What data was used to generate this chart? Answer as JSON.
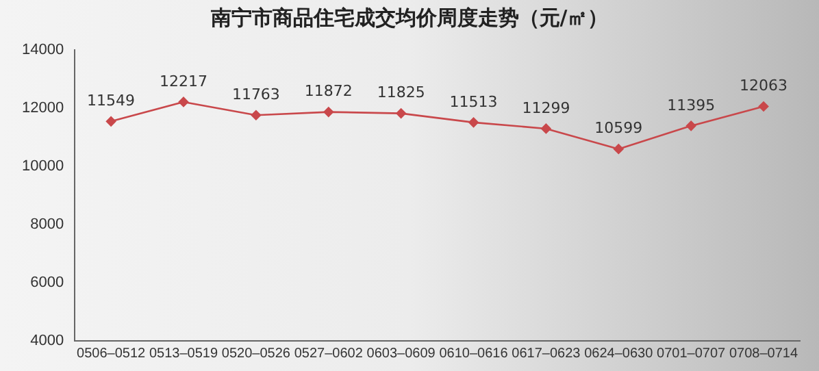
{
  "chart_data": {
    "type": "line",
    "title": "南宁市商品住宅成交均价周度走势（元/㎡）",
    "categories": [
      "0506–0512",
      "0513–0519",
      "0520–0526",
      "0527–0602",
      "0603–0609",
      "0610–0616",
      "0617–0623",
      "0624–0630",
      "0701–0707",
      "0708–0714"
    ],
    "series": [
      {
        "color": "#c9484b",
        "values": [
          11549,
          12217,
          11763,
          11872,
          11825,
          11513,
          11299,
          10599,
          11395,
          12063
        ]
      }
    ],
    "ylim": [
      4000,
      14000
    ],
    "yticks": [
      4000,
      6000,
      8000,
      10000,
      12000,
      14000
    ],
    "grid": false,
    "legend": false,
    "marker": "diamond",
    "line_style": "solid",
    "data_labels": true
  }
}
